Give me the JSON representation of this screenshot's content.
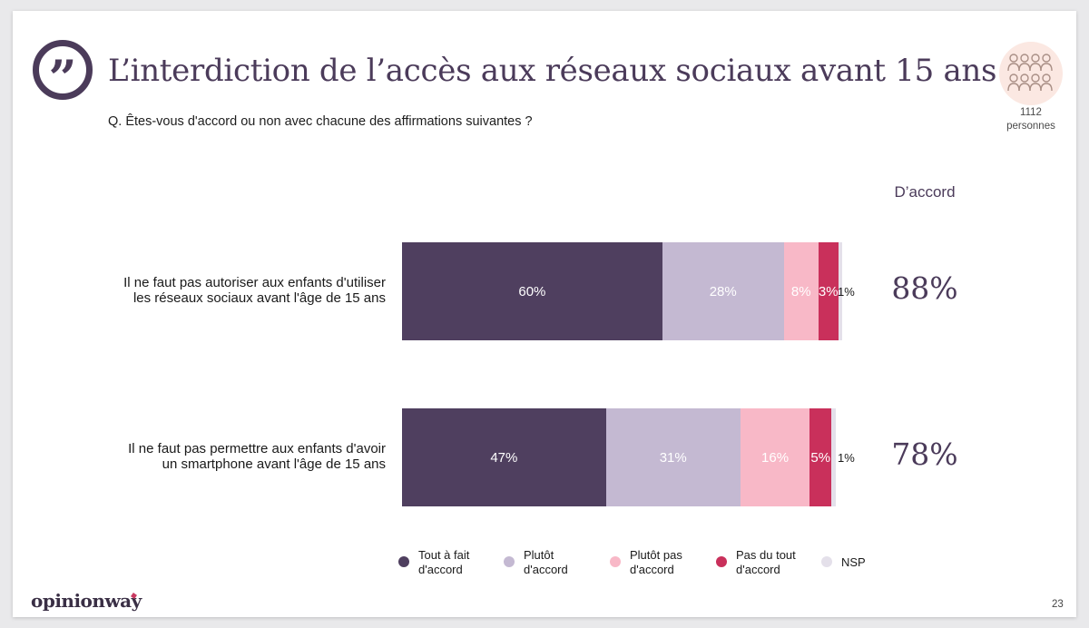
{
  "header": {
    "title": "L’interdiction de l’accès aux réseaux sociaux avant 15 ans",
    "question": "Q. Êtes-vous d'accord ou non avec chacune des affirmations suivantes ?",
    "sample_size": "1112",
    "sample_unit": "personnes",
    "quote_icon": "quote-icon",
    "people_icon": "people-icon"
  },
  "colors": {
    "tout_a_fait": "#4f3f5f",
    "plutot": "#c4b9d2",
    "plutot_pas": "#f8b8c7",
    "pas_du_tout": "#c9305b",
    "nsp": "#e4e0ea",
    "accent": "#4b3b5a"
  },
  "chart_data": {
    "type": "bar",
    "orientation": "horizontal",
    "stacked": true,
    "categories": [
      "Il ne faut pas autoriser aux enfants d'utiliser les réseaux sociaux avant l'âge de 15 ans",
      "Il ne faut pas permettre aux enfants d'avoir un smartphone avant l'âge de 15 ans"
    ],
    "category_lines": [
      [
        "Il ne faut pas autoriser aux enfants d'utiliser",
        "les réseaux sociaux avant l'âge de 15 ans"
      ],
      [
        "Il ne faut pas permettre aux enfants d'avoir",
        "un smartphone avant l'âge de 15 ans"
      ]
    ],
    "series": [
      {
        "name": "Tout à fait d'accord",
        "key": "tout_a_fait",
        "values": [
          60,
          47
        ],
        "labels": [
          "60%",
          "47%"
        ]
      },
      {
        "name": "Plutôt d'accord",
        "key": "plutot",
        "values": [
          28,
          31
        ],
        "labels": [
          "28%",
          "31%"
        ]
      },
      {
        "name": "Plutôt pas d'accord",
        "key": "plutot_pas",
        "values": [
          8,
          16
        ],
        "labels": [
          "8%",
          "16%"
        ]
      },
      {
        "name": "Pas du tout d'accord",
        "key": "pas_du_tout",
        "values": [
          3,
          5
        ],
        "labels": [
          "3%",
          "5%"
        ]
      },
      {
        "name": "NSP",
        "key": "nsp",
        "values": [
          1,
          1
        ],
        "labels": [
          "1%",
          "1%"
        ]
      }
    ],
    "agree_header": "D’accord",
    "agree_totals": [
      "88%",
      "78%"
    ],
    "legend": [
      {
        "line1": "Tout à fait",
        "line2": "d'accord",
        "key": "tout_a_fait"
      },
      {
        "line1": "Plutôt",
        "line2": "d'accord",
        "key": "plutot"
      },
      {
        "line1": "Plutôt pas",
        "line2": "d'accord",
        "key": "plutot_pas"
      },
      {
        "line1": "Pas du tout",
        "line2": "d'accord",
        "key": "pas_du_tout"
      },
      {
        "line1": "NSP",
        "line2": "",
        "key": "nsp"
      }
    ],
    "xlim": [
      0,
      100
    ]
  },
  "footer": {
    "brand": "opinionway",
    "page_number": "23"
  }
}
